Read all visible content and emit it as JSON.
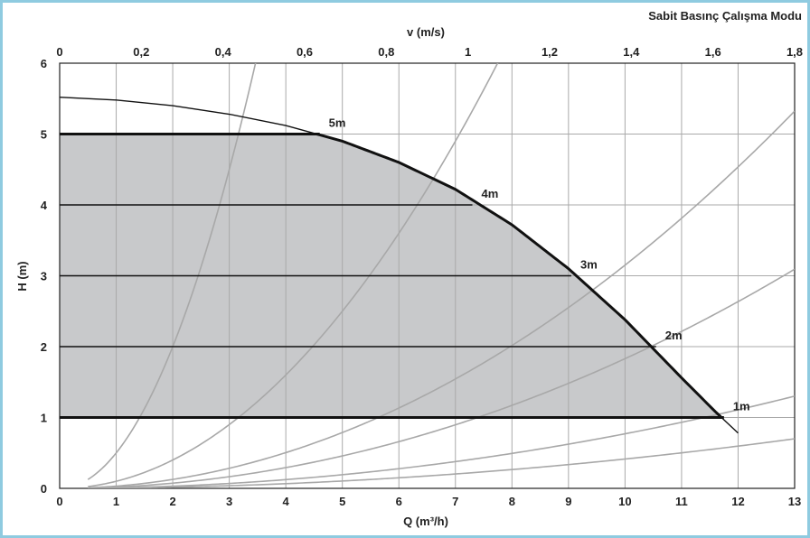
{
  "chart_data": {
    "type": "line",
    "title": "Sabit Basınç Çalışma Modu",
    "xlabel": "Q (m³/h)",
    "ylabel": "H (m)",
    "x2label": "v (m/s)",
    "xlim": [
      0,
      13
    ],
    "ylim": [
      0,
      6
    ],
    "x2lim": [
      0,
      1.8
    ],
    "x_ticks": [
      "0",
      "1",
      "2",
      "3",
      "4",
      "5",
      "6",
      "7",
      "8",
      "9",
      "10",
      "11",
      "12",
      "13"
    ],
    "y_ticks": [
      "0",
      "1",
      "2",
      "3",
      "4",
      "5",
      "6"
    ],
    "x2_ticks": [
      "0",
      "0,2",
      "0,4",
      "0,6",
      "0,8",
      "1",
      "1,2",
      "1,4",
      "1,6",
      "1,8"
    ],
    "grid": true,
    "colors": {
      "frame": "#8fcbe0",
      "area": "#c8c9cb",
      "grid": "#a9a9a9",
      "curve": "#111111",
      "system": "#a8a8a8"
    },
    "max_curve": [
      [
        0,
        5.52
      ],
      [
        1,
        5.48
      ],
      [
        2,
        5.4
      ],
      [
        3,
        5.28
      ],
      [
        4,
        5.12
      ],
      [
        5,
        4.9
      ],
      [
        6,
        4.6
      ],
      [
        7,
        4.22
      ],
      [
        8,
        3.72
      ],
      [
        9,
        3.1
      ],
      [
        10,
        2.38
      ],
      [
        11,
        1.56
      ],
      [
        11.6,
        1.08
      ],
      [
        12,
        0.78
      ]
    ],
    "pressure_settings": [
      {
        "label": "5m",
        "H": 5,
        "Q_end": 4.6
      },
      {
        "label": "4m",
        "H": 4,
        "Q_end": 7.3
      },
      {
        "label": "3m",
        "H": 3,
        "Q_end": 9.05
      },
      {
        "label": "2m",
        "H": 2,
        "Q_end": 10.55
      },
      {
        "label": "1m",
        "H": 1,
        "Q_end": 11.75
      }
    ],
    "system_curves": [
      {
        "k": 0.5,
        "x_start": 0.5
      },
      {
        "k": 0.1,
        "x_start": 0.5
      },
      {
        "k": 0.0315,
        "x_start": 0.5
      },
      {
        "k": 0.0183,
        "x_start": 0.5
      },
      {
        "k": 0.0077,
        "x_start": 0.5
      },
      {
        "k": 0.00414,
        "x_start": 0.5
      }
    ]
  }
}
